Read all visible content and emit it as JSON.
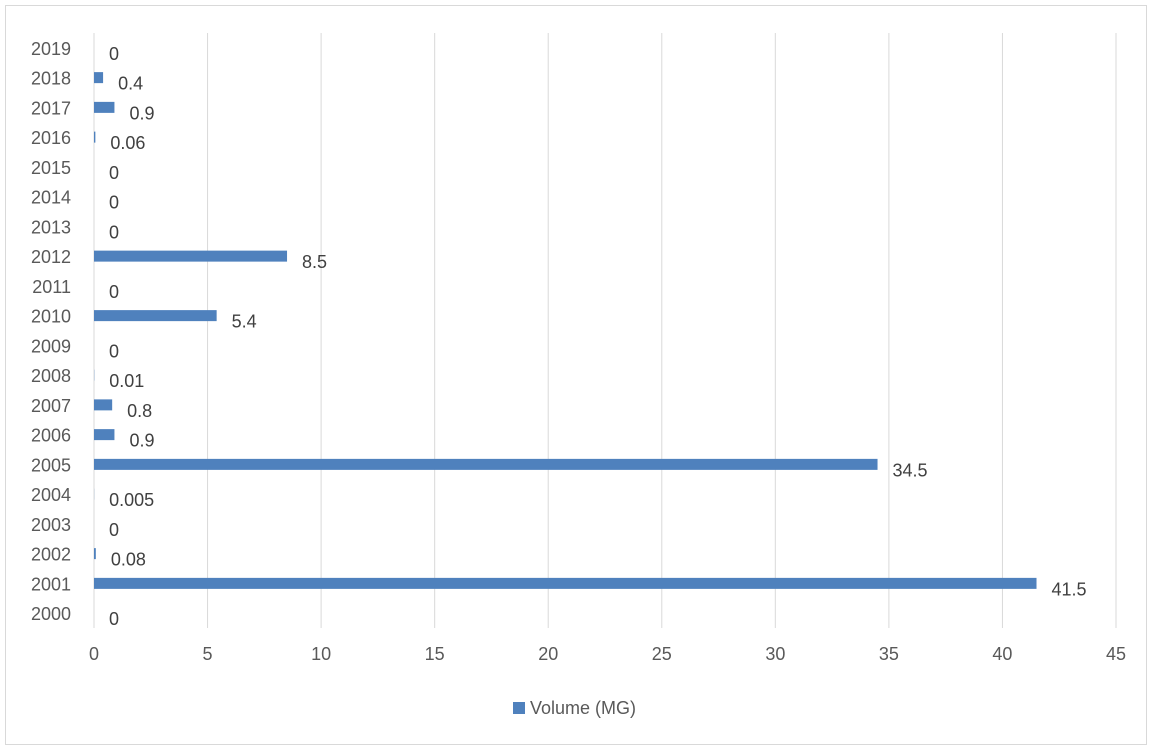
{
  "chart_data": {
    "type": "bar",
    "orientation": "horizontal",
    "title": "",
    "xlabel": "",
    "ylabel": "",
    "categories": [
      "2000",
      "2001",
      "2002",
      "2003",
      "2004",
      "2005",
      "2006",
      "2007",
      "2008",
      "2009",
      "2010",
      "2011",
      "2012",
      "2013",
      "2014",
      "2015",
      "2016",
      "2017",
      "2018",
      "2019"
    ],
    "series": [
      {
        "name": "Volume (MG)",
        "values": [
          0,
          41.5,
          0.08,
          0,
          0.005,
          34.5,
          0.9,
          0.8,
          0.01,
          0,
          5.4,
          0,
          8.5,
          0,
          0,
          0,
          0.06,
          0.9,
          0.4,
          0
        ],
        "labels": [
          "0",
          "41.5",
          "0.08",
          "0",
          "0.005",
          "34.5",
          "0.9",
          "0.8",
          "0.01",
          "0",
          "5.4",
          "0",
          "8.5",
          "0",
          "0",
          "0",
          "0.06",
          "0.9",
          "0.4",
          "0"
        ],
        "color": "#4f81bd"
      }
    ],
    "xlim": [
      0,
      45
    ],
    "x_ticks": [
      "0",
      "5",
      "10",
      "15",
      "20",
      "25",
      "30",
      "35",
      "40",
      "45"
    ],
    "grid": "vertical",
    "legend": "bottom-center",
    "gridline_color": "#d9d9d9",
    "frame_color": "#d9d9d9"
  }
}
